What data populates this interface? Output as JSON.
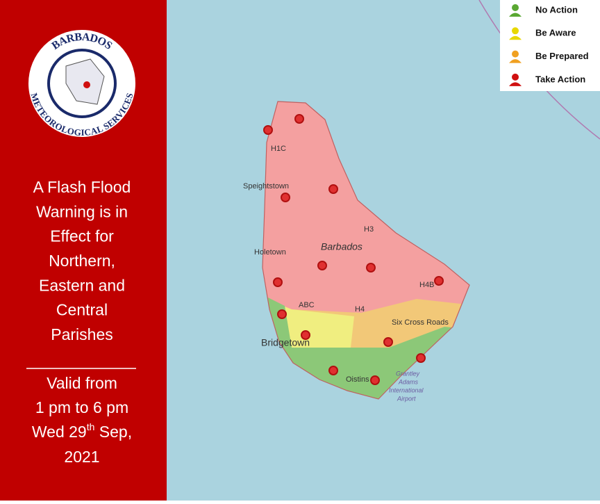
{
  "logo": {
    "top": "BARBADOS",
    "bottom": "METEOROLOGICAL SERVICES"
  },
  "warning": {
    "lines": [
      "A Flash Flood",
      "Warning is in",
      "Effect for",
      "Northern,",
      "Eastern and",
      "Central",
      "Parishes"
    ]
  },
  "validity": {
    "label": "Valid from",
    "time": "1 pm to 6 pm",
    "day": "Wed 29",
    "suffix": "th",
    "month": " Sep,",
    "year": "2021"
  },
  "legend": [
    {
      "label": "No Action",
      "color": "#5aa832"
    },
    {
      "label": "Be Aware",
      "color": "#e8d800"
    },
    {
      "label": "Be Prepared",
      "color": "#f0a020"
    },
    {
      "label": "Take Action",
      "color": "#d01010"
    }
  ],
  "map": {
    "labels": [
      "Speightstown",
      "Holetown",
      "Barbados",
      "Bridgetown",
      "Oistins",
      "Six Cross Roads",
      "Grantley",
      "Adams",
      "International",
      "Airport",
      "H3",
      "H4",
      "H4B",
      "ABC",
      "H1C"
    ]
  }
}
